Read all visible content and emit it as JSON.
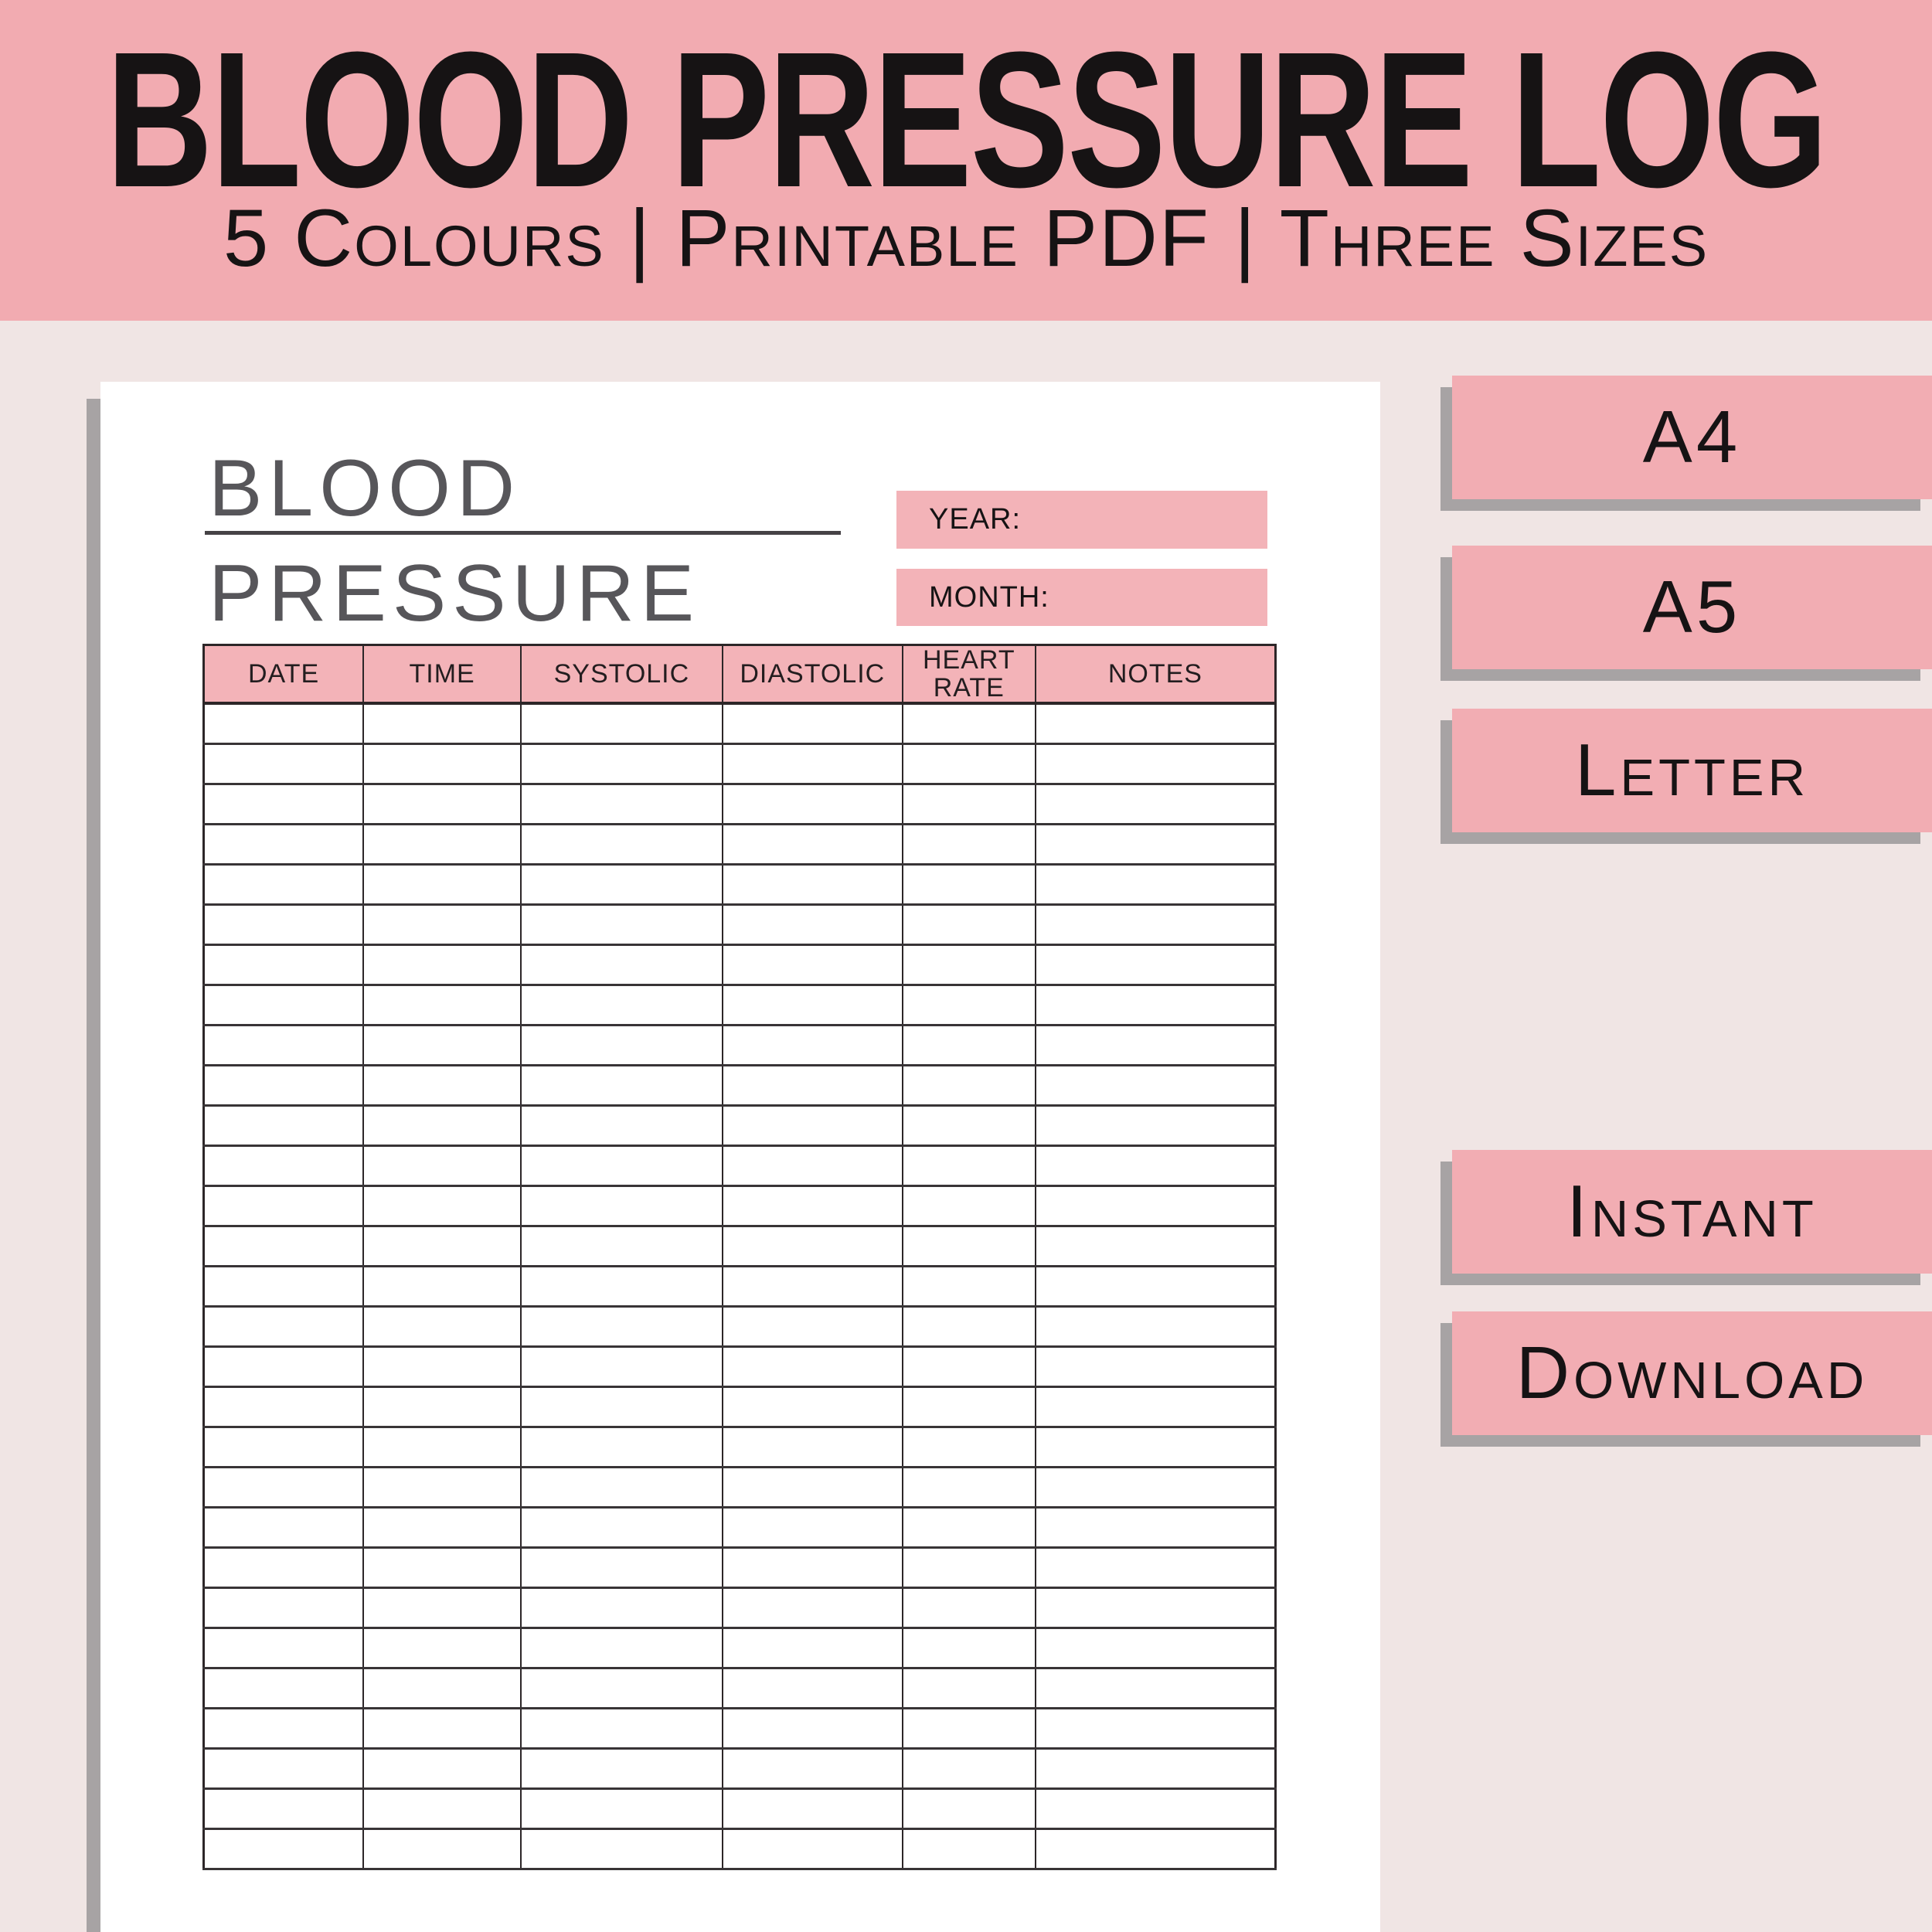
{
  "banner": {
    "title": "BLOOD PRESSURE LOG",
    "subtitle": "5 Colours | Printable PDF | Three Sizes"
  },
  "document": {
    "title_line1": "BLOOD",
    "title_line2": "PRESSURE",
    "year_label": "YEAR:",
    "month_label": "MONTH:",
    "table": {
      "headers": [
        "DATE",
        "TIME",
        "SYSTOLIC",
        "DIASTOLIC",
        "HEART RATE",
        "NOTES"
      ],
      "col_widths_pct": [
        14.9,
        14.7,
        18.8,
        16.8,
        12.4,
        22.4
      ],
      "empty_rows": 29
    }
  },
  "size_options": [
    {
      "label": "A4"
    },
    {
      "label": "A5"
    },
    {
      "label": "Letter"
    }
  ],
  "delivery_options": [
    {
      "label": "Instant"
    },
    {
      "label": "Download"
    }
  ],
  "colors": {
    "banner_pink": "#f2abb1",
    "button_pink": "#f2adb3",
    "accent_pink": "#f3b3b8",
    "background": "#f0e5e4",
    "page_white": "#ffffff",
    "shadow_gray": "#a7a3a4",
    "title_gray": "#57565a",
    "text_black": "#161314",
    "table_border": "#2c2628"
  }
}
